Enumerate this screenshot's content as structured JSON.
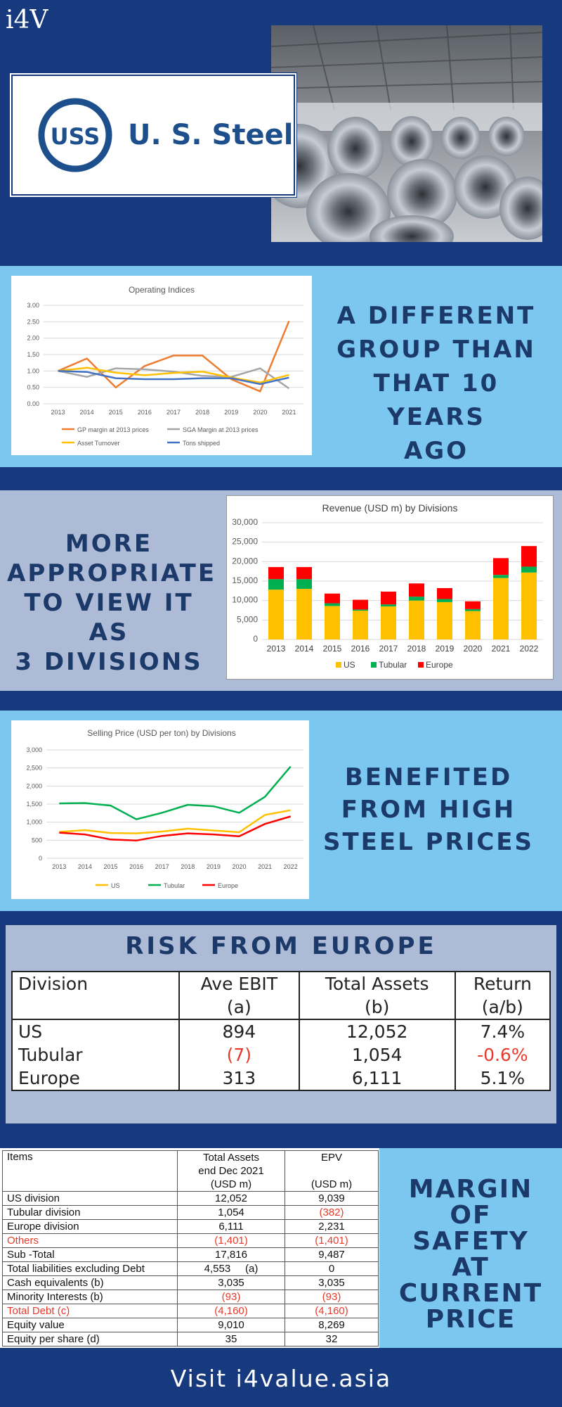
{
  "brand": "i4V",
  "logo": {
    "mark": "USS",
    "company": "U. S. Steel"
  },
  "colors": {
    "navy": "#17397e",
    "light_blue": "#7cc7f0",
    "grey_blue": "#aebbd6",
    "text_navy": "#1b3a6a",
    "negative": "#e83a2b"
  },
  "taglines": {
    "t1": [
      "A DIFFERENT",
      "GROUP THAN",
      "THAT 10 YEARS",
      "AGO"
    ],
    "t2": [
      "MORE",
      "APPROPRIATE",
      "TO VIEW IT AS",
      "3 DIVISIONS"
    ],
    "t3": [
      "BENEFITED",
      "FROM HIGH",
      "STEEL PRICES"
    ],
    "t4": [
      "MARGIN",
      "OF",
      "SAFETY",
      "AT",
      "CURRENT",
      "PRICE"
    ]
  },
  "chart_data": [
    {
      "type": "line",
      "title": "Operating Indices",
      "x": [
        "2013",
        "2014",
        "2015",
        "2016",
        "2017",
        "2018",
        "2019",
        "2020",
        "2021"
      ],
      "ylim": [
        0,
        3
      ],
      "yticks": [
        "0.00",
        "0.50",
        "1.00",
        "1.50",
        "2.00",
        "2.50",
        "3.00"
      ],
      "series": [
        {
          "name": "GP margin at 2013 prices",
          "color": "#ed7d31",
          "values": [
            1.0,
            1.38,
            0.5,
            1.15,
            1.47,
            1.47,
            0.75,
            0.38,
            2.52
          ]
        },
        {
          "name": "SGA Margin at 2013 prices",
          "color": "#a5a5a5",
          "values": [
            1.0,
            0.82,
            1.08,
            1.05,
            0.98,
            0.85,
            0.82,
            1.08,
            0.47
          ]
        },
        {
          "name": "Asset Turnover",
          "color": "#ffc000",
          "values": [
            1.0,
            1.1,
            0.95,
            0.87,
            0.94,
            0.98,
            0.8,
            0.65,
            0.88
          ]
        },
        {
          "name": "Tons shipped",
          "color": "#4472c4",
          "values": [
            1.0,
            0.97,
            0.78,
            0.75,
            0.75,
            0.78,
            0.78,
            0.6,
            0.8
          ]
        }
      ]
    },
    {
      "type": "bar",
      "stacked": true,
      "title": "Revenue (USD m) by Divisions",
      "categories": [
        "2013",
        "2014",
        "2015",
        "2016",
        "2017",
        "2018",
        "2019",
        "2020",
        "2021",
        "2022"
      ],
      "ylim": [
        0,
        30000
      ],
      "yticks": [
        "0",
        "5,000",
        "10,000",
        "15,000",
        "20,000",
        "25,000",
        "30,000"
      ],
      "series": [
        {
          "name": "US",
          "color": "#ffc000",
          "values": [
            12800,
            13000,
            8600,
            7400,
            8500,
            10000,
            9600,
            7300,
            15800,
            17200
          ]
        },
        {
          "name": "Tubular",
          "color": "#00b050",
          "values": [
            2700,
            2500,
            700,
            300,
            500,
            1000,
            800,
            500,
            800,
            1500
          ]
        },
        {
          "name": "Europe",
          "color": "#ff0000",
          "values": [
            3100,
            3100,
            2500,
            2500,
            3300,
            3400,
            2800,
            2000,
            4300,
            5300
          ]
        }
      ]
    },
    {
      "type": "line",
      "title": "Selling Price (USD per ton) by Divisions",
      "x": [
        "2013",
        "2014",
        "2015",
        "2016",
        "2017",
        "2018",
        "2019",
        "2020",
        "2021",
        "2022"
      ],
      "ylim": [
        0,
        3000
      ],
      "yticks": [
        "0",
        "500",
        "1,000",
        "1,500",
        "2,000",
        "2,500",
        "3,000"
      ],
      "series": [
        {
          "name": "US",
          "color": "#ffc000",
          "values": [
            730,
            780,
            700,
            690,
            740,
            820,
            770,
            720,
            1200,
            1330
          ]
        },
        {
          "name": "Tubular",
          "color": "#00b050",
          "values": [
            1520,
            1530,
            1460,
            1080,
            1260,
            1480,
            1440,
            1260,
            1700,
            2540
          ]
        },
        {
          "name": "Europe",
          "color": "#ff0000",
          "values": [
            710,
            660,
            520,
            490,
            620,
            690,
            660,
            610,
            950,
            1160
          ]
        }
      ]
    }
  ],
  "risk": {
    "title": "RISK FROM EUROPE",
    "headers": [
      "Division",
      "Ave EBIT",
      "Total Assets",
      "Return"
    ],
    "subheaders": [
      "",
      "(a)",
      "(b)",
      "(a/b)"
    ],
    "rows": [
      {
        "name": "US",
        "ebit": "894",
        "assets": "12,052",
        "ret": "7.4%"
      },
      {
        "name": "Tubular",
        "ebit": "(7)",
        "assets": "1,054",
        "ret": "-0.6%"
      },
      {
        "name": "Europe",
        "ebit": "313",
        "assets": "6,111",
        "ret": "5.1%"
      }
    ]
  },
  "epv": {
    "h_items": "Items",
    "h_assets": [
      "Total Assets",
      "end Dec 2021",
      "(USD m)"
    ],
    "h_epv": [
      "EPV",
      "",
      "(USD m)"
    ],
    "rows": [
      {
        "item": "US division",
        "assets": "12,052",
        "epv": "9,039"
      },
      {
        "item": "Tubular division",
        "assets": "1,054",
        "epv": "(382)"
      },
      {
        "item": "Europe division",
        "assets": "6,111",
        "epv": "2,231"
      },
      {
        "item": "Others",
        "assets": "(1,401)",
        "epv": "(1,401)"
      },
      {
        "item": "Sub -Total",
        "assets": "17,816",
        "epv": "9,487"
      },
      {
        "item": "Total liabilities excluding Debt",
        "assets": "4,553     (a)",
        "epv": "0"
      },
      {
        "item": "Cash equivalents (b)",
        "assets": "3,035",
        "epv": "3,035"
      },
      {
        "item": "Minority Interests (b)",
        "assets": "(93)",
        "epv": "(93)"
      },
      {
        "item": "Total Debt (c)",
        "assets": "(4,160)",
        "epv": "(4,160)"
      },
      {
        "item": "Equity value",
        "assets": "9,010",
        "epv": "8,269"
      },
      {
        "item": "Equity per share (d)",
        "assets": "35",
        "epv": "32"
      }
    ]
  },
  "footer": "Visit i4value.asia"
}
